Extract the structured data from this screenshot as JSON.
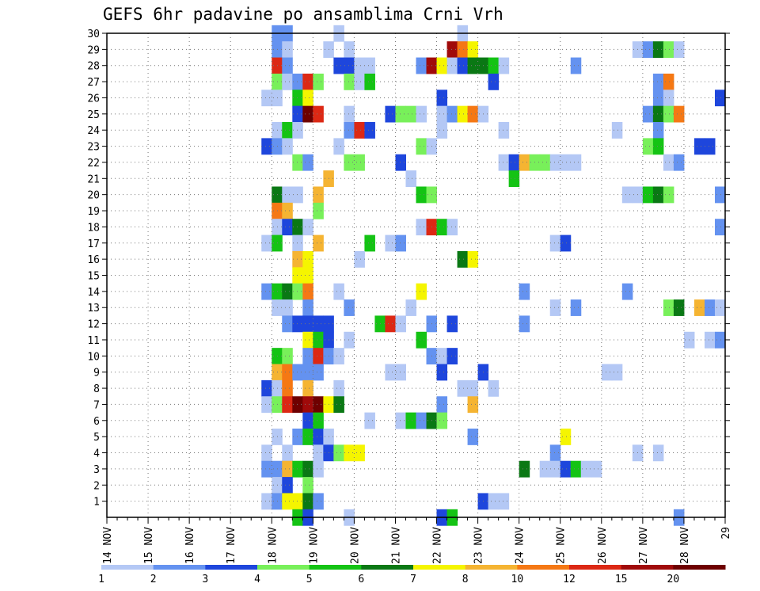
{
  "chart_data": {
    "type": "heatmap",
    "title": "GEFS 6hr padavine po ansamblima Crni Vrh",
    "xlabel": "",
    "ylabel": "",
    "x_ticks": [
      "14 NOV",
      "15 NOV",
      "16 NOV",
      "17 NOV",
      "18 NOV",
      "19 NOV",
      "20 NOV",
      "21 NOV",
      "22 NOV",
      "23 NOV",
      "24 NOV",
      "25 NOV",
      "26 NOV",
      "27 NOV",
      "28 NOV",
      "29"
    ],
    "x_range_days": [
      0,
      15
    ],
    "y_ticks": [
      1,
      2,
      3,
      4,
      5,
      6,
      7,
      8,
      9,
      10,
      11,
      12,
      13,
      14,
      15,
      16,
      17,
      18,
      19,
      20,
      21,
      22,
      23,
      24,
      25,
      26,
      27,
      28,
      29,
      30
    ],
    "y_range": [
      0,
      30
    ],
    "grid": true,
    "legend": {
      "placement": "bottom",
      "ticks": [
        "1",
        "2",
        "3",
        "4",
        "5",
        "6",
        "7",
        "8",
        "10",
        "12",
        "15",
        "20"
      ],
      "colors": [
        "#b4c8f5",
        "#6492f0",
        "#1e46dc",
        "#78f05a",
        "#14c314",
        "#0a7814",
        "#f5f500",
        "#f5b432",
        "#f57814",
        "#dc2814",
        "#a00a0a",
        "#6e0000"
      ]
    },
    "cells_note": "each cell: [member (1-30), step index (6-hour steps from 14 NOV 00Z), category index into legend.colors]",
    "cells": [
      [
        30,
        16,
        1
      ],
      [
        30,
        17,
        1
      ],
      [
        30,
        22,
        0
      ],
      [
        30,
        34,
        0
      ],
      [
        29,
        16,
        1
      ],
      [
        29,
        17,
        0
      ],
      [
        29,
        21,
        0
      ],
      [
        29,
        23,
        0
      ],
      [
        29,
        33,
        10
      ],
      [
        29,
        34,
        8
      ],
      [
        29,
        35,
        6
      ],
      [
        29,
        51,
        0
      ],
      [
        29,
        52,
        1
      ],
      [
        29,
        53,
        5
      ],
      [
        29,
        54,
        3
      ],
      [
        29,
        55,
        0
      ],
      [
        28,
        16,
        9
      ],
      [
        28,
        17,
        1
      ],
      [
        28,
        22,
        2
      ],
      [
        28,
        23,
        2
      ],
      [
        28,
        24,
        0
      ],
      [
        28,
        25,
        0
      ],
      [
        28,
        30,
        1
      ],
      [
        28,
        31,
        10
      ],
      [
        28,
        32,
        6
      ],
      [
        28,
        33,
        0
      ],
      [
        28,
        34,
        2
      ],
      [
        28,
        35,
        5
      ],
      [
        28,
        36,
        5
      ],
      [
        28,
        37,
        4
      ],
      [
        28,
        38,
        0
      ],
      [
        28,
        45,
        1
      ],
      [
        27,
        16,
        3
      ],
      [
        27,
        17,
        0
      ],
      [
        27,
        18,
        1
      ],
      [
        27,
        19,
        9
      ],
      [
        27,
        20,
        3
      ],
      [
        27,
        23,
        3
      ],
      [
        27,
        24,
        0
      ],
      [
        27,
        25,
        4
      ],
      [
        27,
        37,
        2
      ],
      [
        27,
        53,
        1
      ],
      [
        27,
        54,
        8
      ],
      [
        26,
        15,
        0
      ],
      [
        26,
        16,
        0
      ],
      [
        26,
        18,
        4
      ],
      [
        26,
        19,
        6
      ],
      [
        26,
        32,
        2
      ],
      [
        26,
        53,
        1
      ],
      [
        26,
        54,
        0
      ],
      [
        26,
        59,
        2
      ],
      [
        25,
        18,
        2
      ],
      [
        25,
        19,
        11
      ],
      [
        25,
        20,
        9
      ],
      [
        25,
        23,
        0
      ],
      [
        25,
        27,
        2
      ],
      [
        25,
        28,
        3
      ],
      [
        25,
        29,
        3
      ],
      [
        25,
        30,
        0
      ],
      [
        25,
        32,
        0
      ],
      [
        25,
        33,
        1
      ],
      [
        25,
        34,
        6
      ],
      [
        25,
        35,
        8
      ],
      [
        25,
        36,
        0
      ],
      [
        25,
        52,
        1
      ],
      [
        25,
        53,
        5
      ],
      [
        25,
        54,
        3
      ],
      [
        25,
        55,
        8
      ],
      [
        24,
        16,
        0
      ],
      [
        24,
        17,
        4
      ],
      [
        24,
        18,
        0
      ],
      [
        24,
        23,
        1
      ],
      [
        24,
        24,
        9
      ],
      [
        24,
        25,
        2
      ],
      [
        24,
        32,
        0
      ],
      [
        24,
        38,
        0
      ],
      [
        24,
        49,
        0
      ],
      [
        24,
        53,
        1
      ],
      [
        23,
        15,
        2
      ],
      [
        23,
        16,
        1
      ],
      [
        23,
        17,
        0
      ],
      [
        23,
        22,
        0
      ],
      [
        23,
        30,
        3
      ],
      [
        23,
        31,
        0
      ],
      [
        23,
        52,
        3
      ],
      [
        23,
        53,
        4
      ],
      [
        23,
        57,
        2
      ],
      [
        23,
        58,
        2
      ],
      [
        22,
        18,
        3
      ],
      [
        22,
        19,
        1
      ],
      [
        22,
        23,
        3
      ],
      [
        22,
        24,
        3
      ],
      [
        22,
        28,
        2
      ],
      [
        22,
        38,
        0
      ],
      [
        22,
        39,
        2
      ],
      [
        22,
        40,
        7
      ],
      [
        22,
        41,
        3
      ],
      [
        22,
        42,
        3
      ],
      [
        22,
        43,
        0
      ],
      [
        22,
        44,
        0
      ],
      [
        22,
        45,
        0
      ],
      [
        22,
        54,
        0
      ],
      [
        22,
        55,
        1
      ],
      [
        21,
        21,
        7
      ],
      [
        21,
        29,
        0
      ],
      [
        21,
        39,
        4
      ],
      [
        20,
        16,
        5
      ],
      [
        20,
        17,
        0
      ],
      [
        20,
        18,
        0
      ],
      [
        20,
        20,
        7
      ],
      [
        20,
        30,
        4
      ],
      [
        20,
        31,
        3
      ],
      [
        20,
        50,
        0
      ],
      [
        20,
        51,
        0
      ],
      [
        20,
        52,
        4
      ],
      [
        20,
        53,
        5
      ],
      [
        20,
        54,
        3
      ],
      [
        20,
        59,
        1
      ],
      [
        19,
        16,
        8
      ],
      [
        19,
        17,
        7
      ],
      [
        19,
        20,
        3
      ],
      [
        18,
        16,
        0
      ],
      [
        18,
        17,
        2
      ],
      [
        18,
        18,
        5
      ],
      [
        18,
        19,
        0
      ],
      [
        18,
        30,
        0
      ],
      [
        18,
        31,
        9
      ],
      [
        18,
        32,
        4
      ],
      [
        18,
        33,
        0
      ],
      [
        18,
        59,
        1
      ],
      [
        17,
        15,
        0
      ],
      [
        17,
        16,
        4
      ],
      [
        17,
        18,
        0
      ],
      [
        17,
        20,
        7
      ],
      [
        17,
        25,
        4
      ],
      [
        17,
        27,
        0
      ],
      [
        17,
        28,
        1
      ],
      [
        17,
        43,
        0
      ],
      [
        17,
        44,
        2
      ],
      [
        16,
        18,
        7
      ],
      [
        16,
        19,
        6
      ],
      [
        16,
        24,
        0
      ],
      [
        16,
        34,
        5
      ],
      [
        16,
        35,
        6
      ],
      [
        15,
        18,
        6
      ],
      [
        15,
        19,
        6
      ],
      [
        14,
        15,
        1
      ],
      [
        14,
        16,
        4
      ],
      [
        14,
        17,
        5
      ],
      [
        14,
        18,
        3
      ],
      [
        14,
        19,
        8
      ],
      [
        14,
        22,
        0
      ],
      [
        14,
        30,
        6
      ],
      [
        14,
        40,
        1
      ],
      [
        14,
        50,
        1
      ],
      [
        13,
        16,
        0
      ],
      [
        13,
        17,
        0
      ],
      [
        13,
        19,
        1
      ],
      [
        13,
        23,
        1
      ],
      [
        13,
        29,
        0
      ],
      [
        13,
        43,
        0
      ],
      [
        13,
        45,
        1
      ],
      [
        13,
        54,
        3
      ],
      [
        13,
        55,
        5
      ],
      [
        13,
        57,
        7
      ],
      [
        13,
        58,
        1
      ],
      [
        13,
        59,
        0
      ],
      [
        12,
        17,
        1
      ],
      [
        12,
        18,
        2
      ],
      [
        12,
        19,
        2
      ],
      [
        12,
        20,
        2
      ],
      [
        12,
        21,
        2
      ],
      [
        12,
        26,
        4
      ],
      [
        12,
        27,
        9
      ],
      [
        12,
        28,
        0
      ],
      [
        12,
        31,
        1
      ],
      [
        12,
        33,
        2
      ],
      [
        12,
        40,
        1
      ],
      [
        11,
        19,
        6
      ],
      [
        11,
        20,
        4
      ],
      [
        11,
        21,
        2
      ],
      [
        11,
        23,
        0
      ],
      [
        11,
        30,
        4
      ],
      [
        11,
        56,
        0
      ],
      [
        11,
        58,
        0
      ],
      [
        11,
        59,
        1
      ],
      [
        10,
        16,
        4
      ],
      [
        10,
        17,
        3
      ],
      [
        10,
        19,
        1
      ],
      [
        10,
        20,
        9
      ],
      [
        10,
        21,
        1
      ],
      [
        10,
        22,
        0
      ],
      [
        10,
        31,
        1
      ],
      [
        10,
        32,
        0
      ],
      [
        10,
        33,
        2
      ],
      [
        9,
        16,
        7
      ],
      [
        9,
        17,
        8
      ],
      [
        9,
        18,
        1
      ],
      [
        9,
        19,
        1
      ],
      [
        9,
        20,
        1
      ],
      [
        9,
        27,
        0
      ],
      [
        9,
        28,
        0
      ],
      [
        9,
        32,
        2
      ],
      [
        9,
        36,
        2
      ],
      [
        9,
        48,
        0
      ],
      [
        9,
        49,
        0
      ],
      [
        8,
        15,
        2
      ],
      [
        8,
        16,
        0
      ],
      [
        8,
        17,
        8
      ],
      [
        8,
        19,
        7
      ],
      [
        8,
        22,
        0
      ],
      [
        8,
        34,
        0
      ],
      [
        8,
        35,
        0
      ],
      [
        8,
        37,
        0
      ],
      [
        7,
        15,
        0
      ],
      [
        7,
        16,
        3
      ],
      [
        7,
        17,
        9
      ],
      [
        7,
        18,
        11
      ],
      [
        7,
        19,
        10
      ],
      [
        7,
        20,
        11
      ],
      [
        7,
        21,
        6
      ],
      [
        7,
        22,
        5
      ],
      [
        7,
        32,
        1
      ],
      [
        7,
        35,
        7
      ],
      [
        6,
        19,
        2
      ],
      [
        6,
        20,
        4
      ],
      [
        6,
        25,
        0
      ],
      [
        6,
        28,
        0
      ],
      [
        6,
        29,
        4
      ],
      [
        6,
        30,
        1
      ],
      [
        6,
        31,
        5
      ],
      [
        6,
        32,
        3
      ],
      [
        5,
        16,
        0
      ],
      [
        5,
        18,
        1
      ],
      [
        5,
        19,
        4
      ],
      [
        5,
        20,
        2
      ],
      [
        5,
        21,
        0
      ],
      [
        5,
        35,
        1
      ],
      [
        5,
        44,
        6
      ],
      [
        4,
        15,
        0
      ],
      [
        4,
        17,
        0
      ],
      [
        4,
        20,
        0
      ],
      [
        4,
        21,
        2
      ],
      [
        4,
        22,
        3
      ],
      [
        4,
        23,
        6
      ],
      [
        4,
        24,
        6
      ],
      [
        4,
        43,
        1
      ],
      [
        4,
        51,
        0
      ],
      [
        4,
        53,
        0
      ],
      [
        3,
        15,
        1
      ],
      [
        3,
        16,
        1
      ],
      [
        3,
        17,
        7
      ],
      [
        3,
        18,
        4
      ],
      [
        3,
        19,
        5
      ],
      [
        3,
        20,
        0
      ],
      [
        3,
        40,
        5
      ],
      [
        3,
        42,
        0
      ],
      [
        3,
        43,
        0
      ],
      [
        3,
        44,
        2
      ],
      [
        3,
        45,
        4
      ],
      [
        3,
        46,
        0
      ],
      [
        3,
        47,
        0
      ],
      [
        2,
        16,
        0
      ],
      [
        2,
        17,
        2
      ],
      [
        2,
        19,
        3
      ],
      [
        1,
        15,
        0
      ],
      [
        1,
        16,
        1
      ],
      [
        1,
        17,
        6
      ],
      [
        1,
        18,
        6
      ],
      [
        1,
        19,
        5
      ],
      [
        1,
        20,
        1
      ],
      [
        1,
        36,
        2
      ],
      [
        1,
        37,
        0
      ],
      [
        1,
        38,
        0
      ],
      [
        0,
        18,
        4
      ],
      [
        0,
        19,
        2
      ],
      [
        0,
        23,
        0
      ],
      [
        0,
        32,
        2
      ],
      [
        0,
        33,
        4
      ],
      [
        0,
        55,
        1
      ]
    ]
  }
}
